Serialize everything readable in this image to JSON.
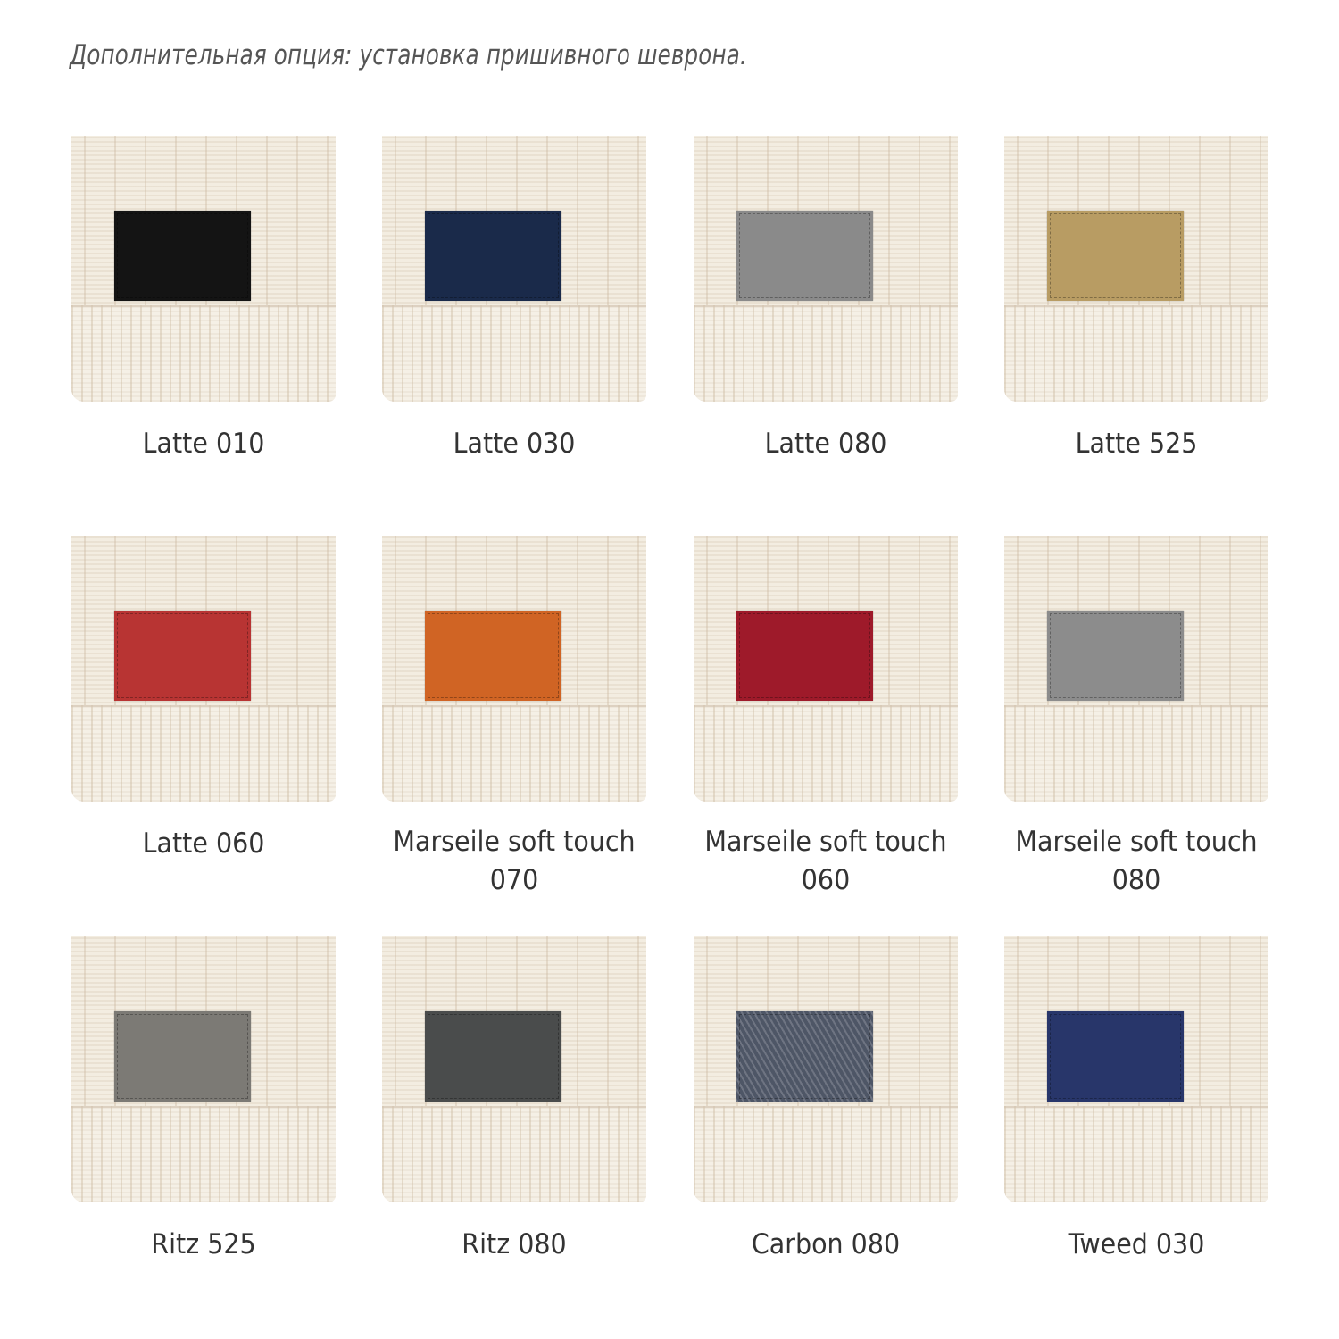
{
  "title": "Дополнительная опция: установка пришивного шеврона.",
  "swatches": [
    {
      "name": "Latte 010",
      "line1": "Latte 010",
      "line2": "",
      "color": "#141414"
    },
    {
      "name": "Latte 030",
      "line1": "Latte 030",
      "line2": "",
      "color": "#1a2a4a"
    },
    {
      "name": "Latte 080",
      "line1": "Latte 080",
      "line2": "",
      "color": "#8a8a8a"
    },
    {
      "name": "Latte 525",
      "line1": "Latte 525",
      "line2": "",
      "color": "#b89c63"
    },
    {
      "name": "Latte 060",
      "line1": "Latte 060",
      "line2": "",
      "color": "#b83433"
    },
    {
      "name": "Marseile soft touch 070",
      "line1": "Marseile soft touch",
      "line2": "070",
      "color": "#d06424"
    },
    {
      "name": "Marseile soft touch 060",
      "line1": "Marseile soft touch",
      "line2": "060",
      "color": "#9e1a2a"
    },
    {
      "name": "Marseile soft touch 080",
      "line1": "Marseile soft touch",
      "line2": "080",
      "color": "#8c8c8c"
    },
    {
      "name": "Ritz 525",
      "line1": "Ritz 525",
      "line2": "",
      "color": "#7c7a75"
    },
    {
      "name": "Ritz 080",
      "line1": "Ritz 080",
      "line2": "",
      "color": "#4a4c4c"
    },
    {
      "name": "Carbon 080",
      "line1": "Carbon 080",
      "line2": "",
      "color": "#4e5666",
      "texture": "carbon"
    },
    {
      "name": "Tweed 030",
      "line1": "Tweed 030",
      "line2": "",
      "color": "#28366a"
    }
  ]
}
